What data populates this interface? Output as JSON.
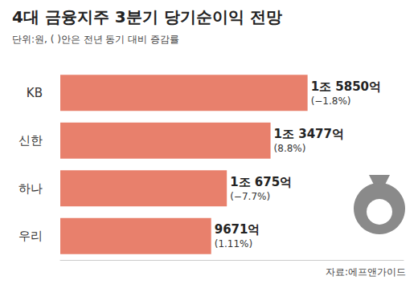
{
  "chart_data": {
    "type": "bar",
    "orientation": "horizontal",
    "title": "4대 금융지주 3분기 당기순이익 전망",
    "subtitle": "단위:원, ( )안은 전년 동기 대비 증감률",
    "source": "자료:에프앤가이드",
    "categories": [
      "KB",
      "신한",
      "하나",
      "우리"
    ],
    "values": [
      15850,
      13477,
      10675,
      9671
    ],
    "value_labels": [
      "1조 5850억",
      "1조 3477억",
      "1조 675억",
      "9671억"
    ],
    "changes": [
      -1.8,
      8.8,
      -7.7,
      1.11
    ],
    "change_labels": [
      "(−1.8%)",
      "(8.8%)",
      "(−7.7%)",
      "(1.11%)"
    ],
    "color": "#e8806c",
    "xlim": [
      0,
      22000
    ],
    "grid": false,
    "data_labels": true,
    "tick_labels": "y"
  }
}
